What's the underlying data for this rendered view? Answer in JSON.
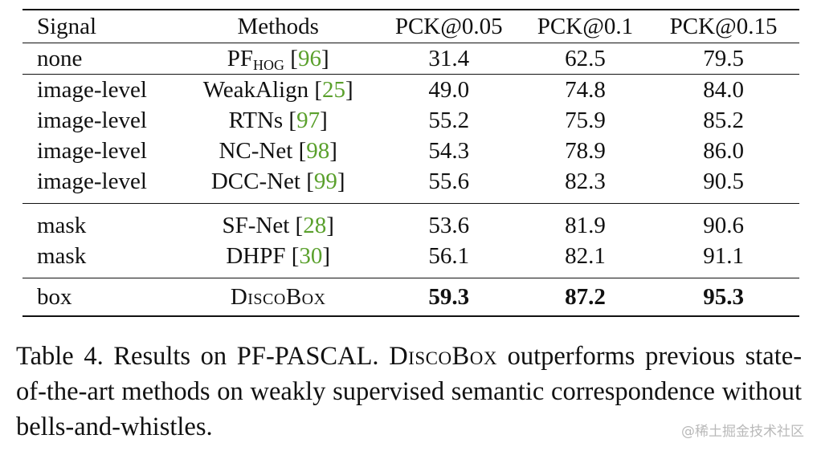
{
  "table": {
    "headers": [
      "Signal",
      "Methods",
      "PCK@0.05",
      "PCK@0.1",
      "PCK@0.15"
    ],
    "rows": [
      {
        "signal": "none",
        "method": "PF",
        "method_sub": "HOG",
        "ref": "96",
        "v1": "31.4",
        "v2": "62.5",
        "v3": "79.5"
      },
      {
        "signal": "image-level",
        "method": "WeakAlign",
        "ref": "25",
        "v1": "49.0",
        "v2": "74.8",
        "v3": "84.0"
      },
      {
        "signal": "image-level",
        "method": "RTNs",
        "ref": "97",
        "v1": "55.2",
        "v2": "75.9",
        "v3": "85.2"
      },
      {
        "signal": "image-level",
        "method": "NC-Net",
        "ref": "98",
        "v1": "54.3",
        "v2": "78.9",
        "v3": "86.0"
      },
      {
        "signal": "image-level",
        "method": "DCC-Net",
        "ref": "99",
        "v1": "55.6",
        "v2": "82.3",
        "v3": "90.5"
      },
      {
        "signal": "mask",
        "method": "SF-Net",
        "ref": "28",
        "v1": "53.6",
        "v2": "81.9",
        "v3": "90.6"
      },
      {
        "signal": "mask",
        "method": "DHPF",
        "ref": "30",
        "v1": "56.1",
        "v2": "82.1",
        "v3": "91.1"
      },
      {
        "signal": "box",
        "method": "DiscoBox",
        "v1": "59.3",
        "v2": "87.2",
        "v3": "95.3"
      }
    ]
  },
  "caption": {
    "prefix": "Table 4. Results on PF-PASCAL. ",
    "method_name": "DiscoBox",
    "suffix": " outperforms previous state-of-the-art methods on weakly supervised semantic correspondence without bells-and-whistles."
  },
  "watermark": "@稀土掘金技术社区",
  "colors": {
    "reference_link": "#5aa02c",
    "text": "#111111",
    "watermark": "#b9b9b9"
  }
}
